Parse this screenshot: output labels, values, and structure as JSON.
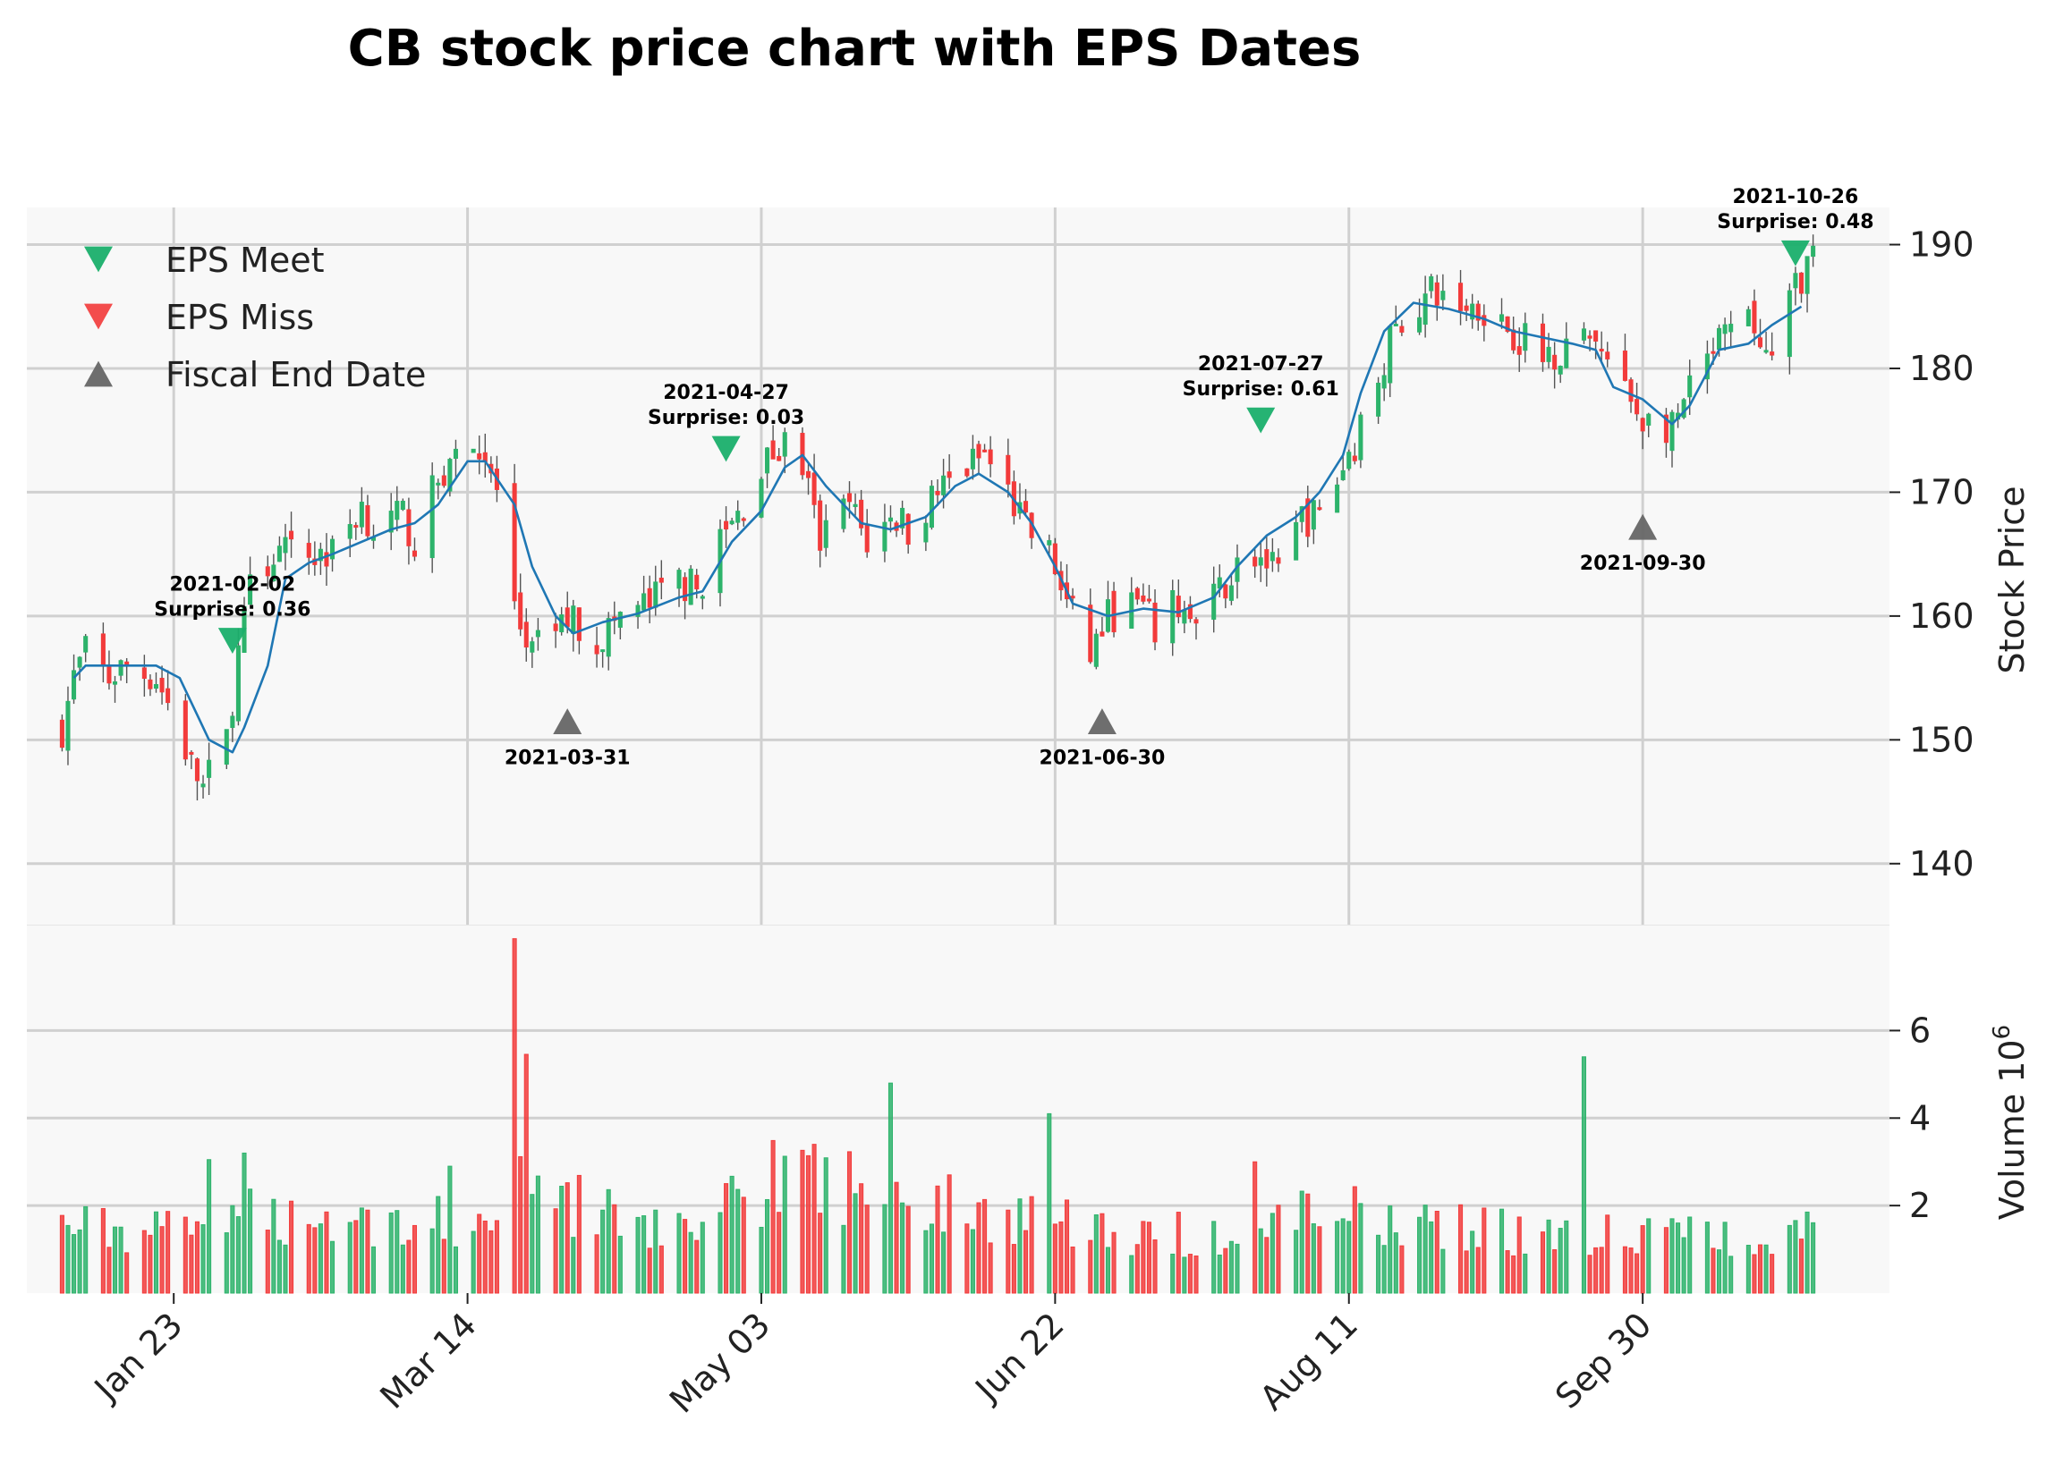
{
  "title": "CB stock price chart with EPS Dates",
  "chart_data": {
    "type": "candlestick",
    "title": "CB stock price chart with EPS Dates",
    "price_axis": {
      "label": "Stock Price",
      "ylim": [
        135,
        193
      ],
      "ticks": [
        140,
        150,
        160,
        170,
        180,
        190
      ]
    },
    "volume_axis": {
      "label": "Volume  10",
      "exponent": "6",
      "ylim": [
        0,
        8.4
      ],
      "ticks": [
        2,
        4,
        6
      ]
    },
    "x_axis": {
      "range": [
        "2020-12-29",
        "2021-11-11"
      ],
      "ticks": [
        {
          "date": "2021-01-23",
          "label": "Jan 23"
        },
        {
          "date": "2021-03-14",
          "label": "Mar 14"
        },
        {
          "date": "2021-05-03",
          "label": "May 03"
        },
        {
          "date": "2021-06-22",
          "label": "Jun 22"
        },
        {
          "date": "2021-08-11",
          "label": "Aug 11"
        },
        {
          "date": "2021-09-30",
          "label": "Sep 30"
        }
      ]
    },
    "colors": {
      "up": "#2db36b",
      "down": "#f23b3b",
      "ma_line": "#1f77b4",
      "eps_meet": "#1aaf6b",
      "eps_miss": "#f24242",
      "fiscal_end": "#666666",
      "panel_bg": "#f8f8f8",
      "grid": "#d0d0d0"
    },
    "price_anchors": [
      [
        "2021-01-04",
        151
      ],
      [
        "2021-01-06",
        155
      ],
      [
        "2021-01-08",
        157
      ],
      [
        "2021-01-12",
        155
      ],
      [
        "2021-01-15",
        156
      ],
      [
        "2021-01-20",
        155
      ],
      [
        "2021-01-22",
        153
      ],
      [
        "2021-01-26",
        148
      ],
      [
        "2021-01-28",
        146
      ],
      [
        "2021-02-01",
        150
      ],
      [
        "2021-02-03",
        157
      ],
      [
        "2021-02-05",
        162
      ],
      [
        "2021-02-09",
        165
      ],
      [
        "2021-02-15",
        165
      ],
      [
        "2021-02-19",
        165
      ],
      [
        "2021-02-24",
        169
      ],
      [
        "2021-02-26",
        167
      ],
      [
        "2021-03-03",
        168
      ],
      [
        "2021-03-05",
        166
      ],
      [
        "2021-03-09",
        171
      ],
      [
        "2021-03-12",
        173
      ],
      [
        "2021-03-16",
        174
      ],
      [
        "2021-03-19",
        170
      ],
      [
        "2021-03-22",
        160
      ],
      [
        "2021-03-25",
        157
      ],
      [
        "2021-03-31",
        160
      ],
      [
        "2021-04-05",
        158
      ],
      [
        "2021-04-09",
        160
      ],
      [
        "2021-04-14",
        161
      ],
      [
        "2021-04-19",
        163
      ],
      [
        "2021-04-22",
        162
      ],
      [
        "2021-04-26",
        166
      ],
      [
        "2021-04-29",
        168
      ],
      [
        "2021-05-03",
        172
      ],
      [
        "2021-05-07",
        174
      ],
      [
        "2021-05-10",
        172
      ],
      [
        "2021-05-13",
        166
      ],
      [
        "2021-05-18",
        169
      ],
      [
        "2021-05-21",
        166
      ],
      [
        "2021-05-26",
        168
      ],
      [
        "2021-05-28",
        167
      ],
      [
        "2021-06-02",
        170
      ],
      [
        "2021-06-07",
        172
      ],
      [
        "2021-06-10",
        173
      ],
      [
        "2021-06-14",
        170
      ],
      [
        "2021-06-17",
        167
      ],
      [
        "2021-06-21",
        165
      ],
      [
        "2021-06-24",
        161
      ],
      [
        "2021-06-28",
        157
      ],
      [
        "2021-07-01",
        160
      ],
      [
        "2021-07-06",
        161
      ],
      [
        "2021-07-09",
        159
      ],
      [
        "2021-07-13",
        161
      ],
      [
        "2021-07-16",
        159
      ],
      [
        "2021-07-20",
        162
      ],
      [
        "2021-07-23",
        164
      ],
      [
        "2021-07-27",
        165
      ],
      [
        "2021-07-30",
        163
      ],
      [
        "2021-08-03",
        168
      ],
      [
        "2021-08-06",
        168
      ],
      [
        "2021-08-10",
        172
      ],
      [
        "2021-08-13",
        175
      ],
      [
        "2021-08-17",
        181
      ],
      [
        "2021-08-20",
        184
      ],
      [
        "2021-08-25",
        186
      ],
      [
        "2021-08-31",
        185
      ],
      [
        "2021-09-03",
        185
      ],
      [
        "2021-09-08",
        183
      ],
      [
        "2021-09-13",
        181
      ],
      [
        "2021-09-17",
        182
      ],
      [
        "2021-09-22",
        182
      ],
      [
        "2021-09-27",
        178
      ],
      [
        "2021-09-30",
        176
      ],
      [
        "2021-10-05",
        175
      ],
      [
        "2021-10-08",
        178
      ],
      [
        "2021-10-13",
        182
      ],
      [
        "2021-10-18",
        184
      ],
      [
        "2021-10-22",
        180
      ],
      [
        "2021-10-26",
        187
      ],
      [
        "2021-10-29",
        189
      ]
    ],
    "ma_line": [
      [
        "2021-01-06",
        155
      ],
      [
        "2021-01-08",
        156
      ],
      [
        "2021-01-20",
        156
      ],
      [
        "2021-01-24",
        155
      ],
      [
        "2021-01-27",
        152
      ],
      [
        "2021-01-29",
        150
      ],
      [
        "2021-02-02",
        149
      ],
      [
        "2021-02-04",
        151
      ],
      [
        "2021-02-08",
        156
      ],
      [
        "2021-02-11",
        163
      ],
      [
        "2021-02-15",
        164.3
      ],
      [
        "2021-02-19",
        165
      ],
      [
        "2021-02-24",
        166
      ],
      [
        "2021-03-01",
        167
      ],
      [
        "2021-03-05",
        167.5
      ],
      [
        "2021-03-09",
        169
      ],
      [
        "2021-03-14",
        172.5
      ],
      [
        "2021-03-17",
        172.5
      ],
      [
        "2021-03-22",
        169
      ],
      [
        "2021-03-25",
        164
      ],
      [
        "2021-03-29",
        160
      ],
      [
        "2021-04-01",
        158.6
      ],
      [
        "2021-04-06",
        159.5
      ],
      [
        "2021-04-12",
        160.2
      ],
      [
        "2021-04-19",
        161.5
      ],
      [
        "2021-04-23",
        162
      ],
      [
        "2021-04-28",
        166
      ],
      [
        "2021-05-03",
        168.5
      ],
      [
        "2021-05-07",
        172
      ],
      [
        "2021-05-10",
        173
      ],
      [
        "2021-05-14",
        170.5
      ],
      [
        "2021-05-20",
        167.5
      ],
      [
        "2021-05-25",
        167
      ],
      [
        "2021-05-31",
        168
      ],
      [
        "2021-06-05",
        170.5
      ],
      [
        "2021-06-09",
        171.5
      ],
      [
        "2021-06-14",
        170
      ],
      [
        "2021-06-18",
        167.5
      ],
      [
        "2021-06-22",
        164
      ],
      [
        "2021-06-25",
        161
      ],
      [
        "2021-07-01",
        160
      ],
      [
        "2021-07-07",
        160.6
      ],
      [
        "2021-07-13",
        160.3
      ],
      [
        "2021-07-19",
        161.5
      ],
      [
        "2021-07-23",
        164
      ],
      [
        "2021-07-28",
        166.5
      ],
      [
        "2021-08-02",
        168
      ],
      [
        "2021-08-06",
        170
      ],
      [
        "2021-08-10",
        173
      ],
      [
        "2021-08-13",
        178
      ],
      [
        "2021-08-17",
        183
      ],
      [
        "2021-08-22",
        185.3
      ],
      [
        "2021-08-28",
        184.8
      ],
      [
        "2021-09-03",
        184
      ],
      [
        "2021-09-08",
        183
      ],
      [
        "2021-09-13",
        182.5
      ],
      [
        "2021-09-18",
        182
      ],
      [
        "2021-09-22",
        181.5
      ],
      [
        "2021-09-25",
        178.5
      ],
      [
        "2021-09-30",
        177.5
      ],
      [
        "2021-10-05",
        175.5
      ],
      [
        "2021-10-08",
        177
      ],
      [
        "2021-10-13",
        181.5
      ],
      [
        "2021-10-18",
        182
      ],
      [
        "2021-10-22",
        183.5
      ],
      [
        "2021-10-27",
        185
      ]
    ],
    "volume_anchors": [
      [
        "2021-01-04",
        1.5
      ],
      [
        "2021-01-20",
        1.4
      ],
      [
        "2021-01-29",
        2.3
      ],
      [
        "2021-02-05",
        1.8
      ],
      [
        "2021-02-26",
        1.6
      ],
      [
        "2021-03-12",
        1.6
      ],
      [
        "2021-03-19",
        1.4
      ],
      [
        "2021-03-23",
        4.7
      ],
      [
        "2021-03-26",
        2.6
      ],
      [
        "2021-04-05",
        1.8
      ],
      [
        "2021-04-20",
        1.3
      ],
      [
        "2021-04-30",
        2.5
      ],
      [
        "2021-05-12",
        2.5
      ],
      [
        "2021-05-21",
        2.5
      ],
      [
        "2021-05-28",
        2.2
      ],
      [
        "2021-06-09",
        1.8
      ],
      [
        "2021-06-21",
        1.8
      ],
      [
        "2021-07-06",
        1.2
      ],
      [
        "2021-07-23",
        1.5
      ],
      [
        "2021-08-06",
        1.8
      ],
      [
        "2021-08-25",
        1.7
      ],
      [
        "2021-09-13",
        1.3
      ],
      [
        "2021-09-30",
        1.3
      ],
      [
        "2021-10-15",
        1.4
      ],
      [
        "2021-10-29",
        1.4
      ]
    ],
    "volume_spikes": [
      [
        "2021-03-22",
        8.1
      ],
      [
        "2021-03-21",
        4.6
      ],
      [
        "2021-05-25",
        4.8
      ],
      [
        "2021-06-21",
        4.1
      ],
      [
        "2021-09-20",
        5.4
      ],
      [
        "2021-05-12",
        3.4
      ],
      [
        "2021-02-04",
        3.2
      ],
      [
        "2021-07-26",
        3.0
      ],
      [
        "2021-03-11",
        2.9
      ]
    ],
    "eps_events": [
      {
        "date": "2021-02-02",
        "price": 158,
        "type": "EPS Meet",
        "label": "2021-02-02",
        "surprise": "Surprise: 0.36"
      },
      {
        "date": "2021-04-27",
        "price": 173.5,
        "type": "EPS Meet",
        "label": "2021-04-27",
        "surprise": "Surprise: 0.03"
      },
      {
        "date": "2021-07-27",
        "price": 175.8,
        "type": "EPS Meet",
        "label": "2021-07-27",
        "surprise": "Surprise: 0.61"
      },
      {
        "date": "2021-10-26",
        "price": 189.3,
        "type": "EPS Meet",
        "label": "2021-10-26",
        "surprise": "Surprise: 0.48"
      }
    ],
    "fiscal_end_dates": [
      {
        "date": "2021-03-31",
        "price": 151.5,
        "label": "2021-03-31"
      },
      {
        "date": "2021-06-30",
        "price": 151.5,
        "label": "2021-06-30"
      },
      {
        "date": "2021-09-30",
        "price": 167.2,
        "label": "2021-09-30"
      }
    ],
    "legend": {
      "position": "upper-left",
      "entries": [
        {
          "label": "EPS Meet",
          "marker": "triangle-down",
          "color": "#1aaf6b"
        },
        {
          "label": "EPS Miss",
          "marker": "triangle-down",
          "color": "#f24242"
        },
        {
          "label": "Fiscal End Date",
          "marker": "triangle-up",
          "color": "#666666"
        }
      ]
    }
  }
}
